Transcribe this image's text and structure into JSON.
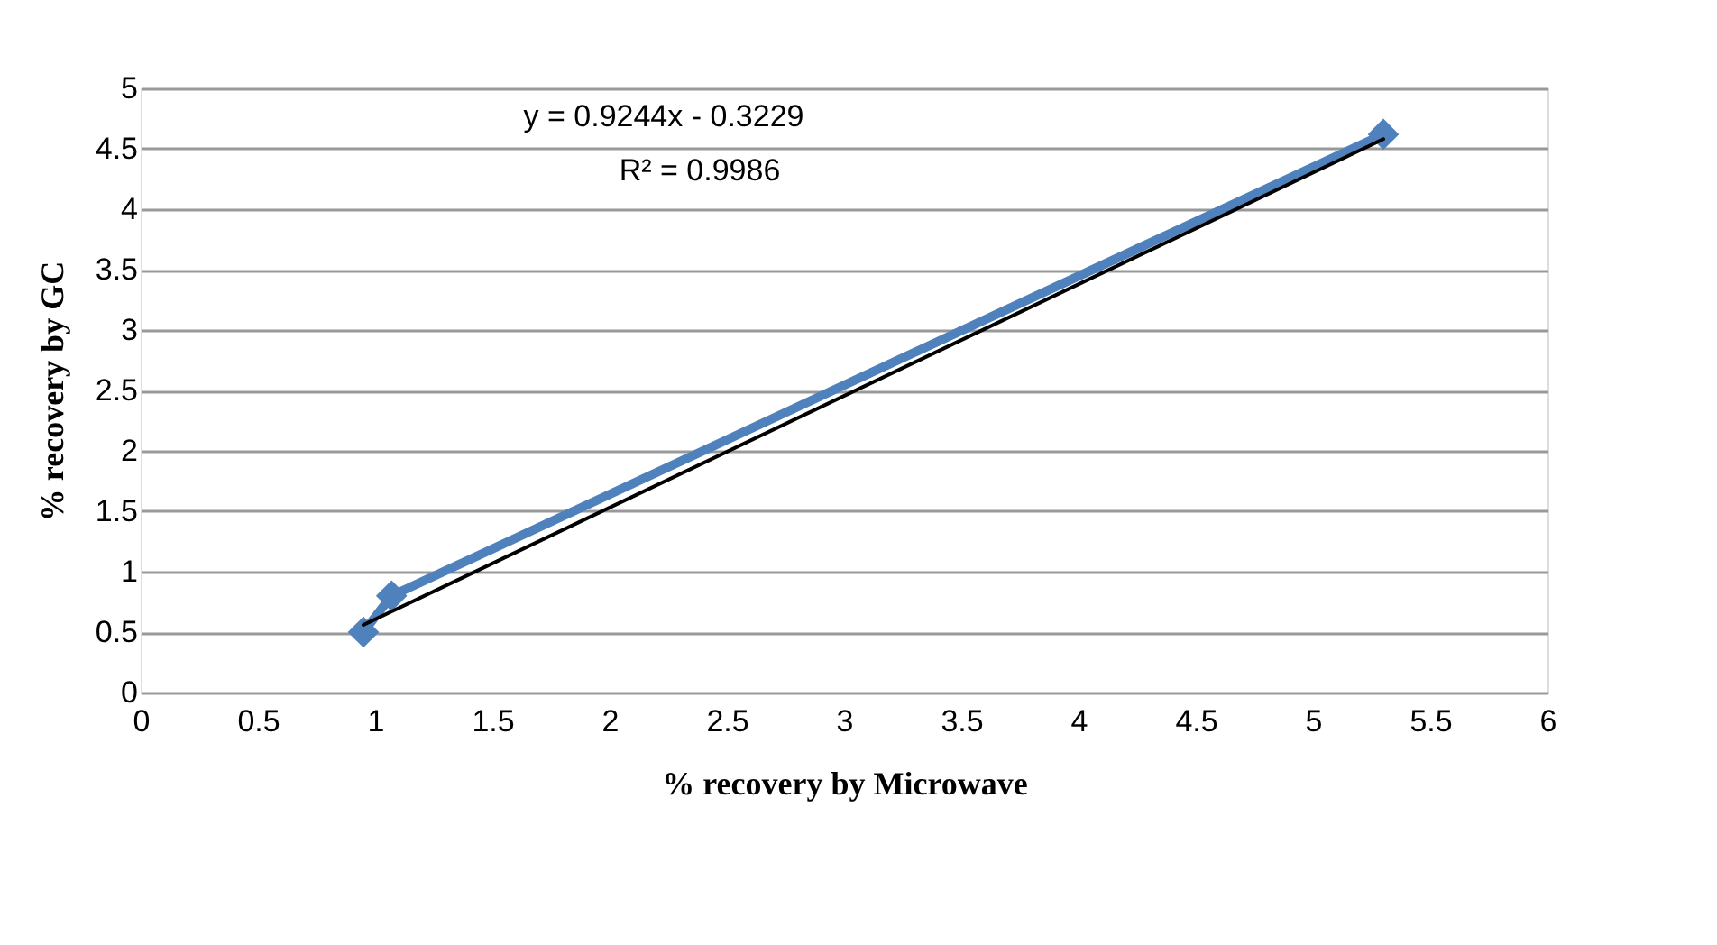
{
  "chart_data": {
    "type": "line",
    "xlabel": "% recovery by Microwave",
    "ylabel": "% recovery by GC",
    "xlim": [
      0,
      6
    ],
    "xticks": [
      0,
      0.5,
      1,
      1.5,
      2,
      2.5,
      3,
      3.5,
      4,
      4.5,
      5,
      5.5,
      6
    ],
    "ylim": [
      0,
      5
    ],
    "yticks": [
      0,
      0.5,
      1,
      1.5,
      2,
      2.5,
      3,
      3.5,
      4,
      4.5,
      5
    ],
    "grid": "y",
    "annotations": [
      "y = 0.9244x - 0.3229",
      "R² = 0.9986"
    ],
    "series": [
      {
        "color": "#4f81bd",
        "marker": "diamond",
        "x": [
          0.95,
          1.07,
          5.3
        ],
        "values": [
          0.5,
          0.8,
          4.62
        ]
      },
      {
        "type": "line",
        "color": "#000000",
        "marker": "none",
        "x": [
          0.95,
          5.3
        ],
        "values": [
          0.56,
          4.58
        ]
      }
    ]
  }
}
